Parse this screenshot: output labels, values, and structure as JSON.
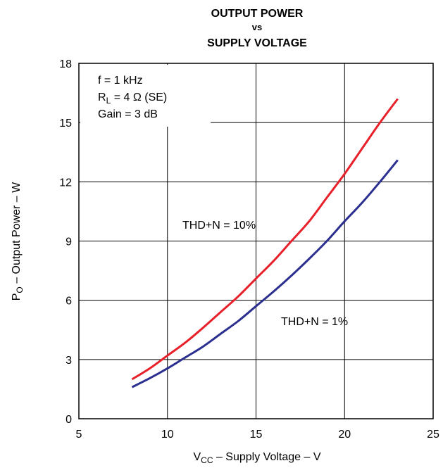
{
  "chart_data": {
    "type": "line",
    "title_lines": [
      "OUTPUT POWER",
      "vs",
      "SUPPLY VOLTAGE"
    ],
    "xlabel": {
      "main": "V",
      "sub": "CC",
      "rest": " – Supply Voltage – V"
    },
    "ylabel": {
      "main": "P",
      "sub": "O",
      "rest": " – Output Power – W"
    },
    "xlim": [
      5,
      25
    ],
    "ylim": [
      0,
      18
    ],
    "xticks": [
      5,
      10,
      15,
      20,
      25
    ],
    "yticks": [
      0,
      3,
      6,
      9,
      12,
      15,
      18
    ],
    "grid": true,
    "conditions": [
      {
        "main": "f = 1 kHz",
        "sub": "",
        "rest": ""
      },
      {
        "main": "R",
        "sub": "L",
        "rest": " = 4 Ω (SE)"
      },
      {
        "main": "Gain = 3 dB",
        "sub": "",
        "rest": ""
      }
    ],
    "series": [
      {
        "name": "THD+N = 10%",
        "color": "#e8202a",
        "x": [
          8,
          9,
          10,
          11,
          12,
          13,
          14,
          15,
          16,
          17,
          18,
          19,
          20,
          21,
          22,
          23
        ],
        "y": [
          2.0,
          2.55,
          3.2,
          3.85,
          4.6,
          5.4,
          6.2,
          7.1,
          8.0,
          9.0,
          10.0,
          11.2,
          12.4,
          13.7,
          15.0,
          16.2
        ]
      },
      {
        "name": "THD+N = 1%",
        "color": "#2b2f8f",
        "x": [
          8,
          9,
          10,
          11,
          12,
          13,
          14,
          15,
          16,
          17,
          18,
          19,
          20,
          21,
          22,
          23
        ],
        "y": [
          1.6,
          2.05,
          2.55,
          3.1,
          3.65,
          4.3,
          4.95,
          5.7,
          6.45,
          7.25,
          8.1,
          9.0,
          10.0,
          10.95,
          12.0,
          13.1
        ]
      }
    ],
    "annotations": [
      "THD+N = 10%",
      "THD+N = 1%"
    ]
  }
}
